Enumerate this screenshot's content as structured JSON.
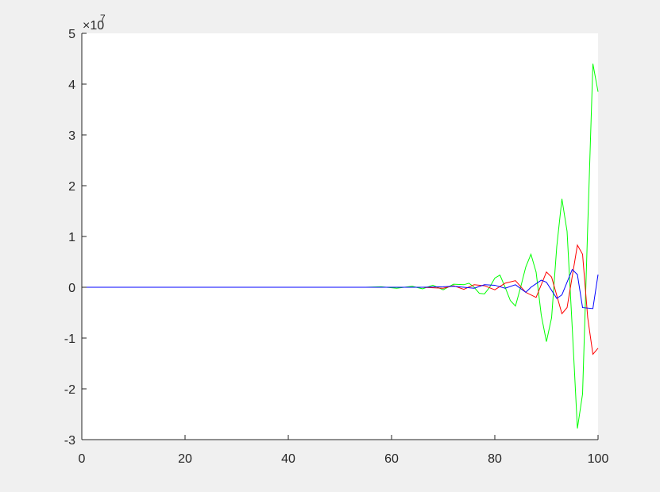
{
  "figure": {
    "background": "#f0f0f0",
    "axes_background": "#ffffff",
    "axis_color": "#262626"
  },
  "chart_data": {
    "type": "line",
    "title": "",
    "xlabel": "",
    "ylabel": "",
    "xlim": [
      0,
      100
    ],
    "ylim": [
      -3,
      5
    ],
    "y_exponent_label": {
      "base": "×10",
      "exponent": "7"
    },
    "grid": false,
    "legend": "none",
    "x_ticks": [
      0,
      20,
      40,
      60,
      80,
      100
    ],
    "y_ticks": [
      -3,
      -2,
      -1,
      0,
      1,
      2,
      3,
      4,
      5
    ],
    "x_tick_labels": [
      "0",
      "20",
      "40",
      "60",
      "80",
      "100"
    ],
    "y_tick_labels": [
      "-3",
      "-2",
      "-1",
      "0",
      "1",
      "2",
      "3",
      "4",
      "5"
    ],
    "series": [
      {
        "color": "#00ff00",
        "x": [
          0,
          50,
          55,
          58,
          61,
          64,
          66,
          68,
          70,
          72,
          74,
          75,
          76,
          77,
          78,
          79,
          80,
          81,
          82,
          83,
          84,
          85,
          86,
          87,
          88,
          89,
          90,
          91,
          92,
          93,
          94,
          95,
          96,
          97,
          98,
          99,
          100
        ],
        "values": [
          0,
          0,
          0,
          0.01,
          -0.02,
          0.02,
          -0.03,
          0.04,
          -0.05,
          0.06,
          0.05,
          0.08,
          0,
          -0.12,
          -0.13,
          0,
          0.18,
          0.24,
          0,
          -0.26,
          -0.37,
          0,
          0.4,
          0.65,
          0.3,
          -0.55,
          -1.07,
          -0.6,
          0.8,
          1.74,
          1.1,
          -0.8,
          -2.78,
          -2.1,
          1.2,
          4.4,
          3.85
        ]
      },
      {
        "color": "#ff0000",
        "x": [
          0,
          60,
          66,
          70,
          72,
          74,
          76,
          78,
          80,
          82,
          84,
          86,
          88,
          90,
          91,
          93,
          94,
          96,
          97,
          98,
          99,
          100
        ],
        "values": [
          0,
          0,
          0,
          -0.02,
          0.03,
          -0.04,
          0.05,
          0.03,
          -0.05,
          0.08,
          0.13,
          -0.1,
          -0.2,
          0.3,
          0.2,
          -0.52,
          -0.4,
          0.83,
          0.65,
          -0.6,
          -1.32,
          -1.2
        ]
      },
      {
        "color": "#0000ff",
        "x": [
          0,
          62,
          66,
          70,
          72,
          74,
          76,
          78,
          80,
          82,
          84,
          86,
          87,
          89,
          90,
          92,
          93,
          95,
          96,
          97,
          99,
          100
        ],
        "values": [
          0,
          0,
          0,
          0.01,
          0.02,
          0,
          -0.02,
          0.05,
          0.04,
          -0.02,
          0.05,
          -0.1,
          0,
          0.14,
          0.1,
          -0.22,
          -0.15,
          0.35,
          0.25,
          -0.4,
          -0.42,
          0.25
        ]
      }
    ]
  }
}
